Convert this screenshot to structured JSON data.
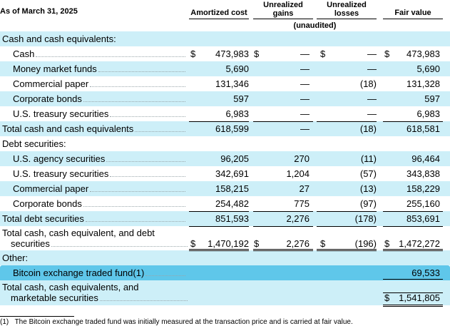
{
  "header": {
    "as_of": "As of March 31, 2025",
    "col_amortized": "Amortized cost",
    "col_gains": "Unrealized\ngains",
    "col_losses": "Unrealized\nlosses",
    "col_fair": "Fair value",
    "unaudited": "(unaudited)"
  },
  "rows": [
    {
      "label": "Cash and cash equivalents:",
      "type": "section"
    },
    {
      "label": "Cash",
      "type": "item",
      "amortized": "473,983",
      "gains": "—",
      "losses": "—",
      "fair": "473,983",
      "dollar": true
    },
    {
      "label": "Money market funds",
      "type": "item",
      "amortized": "5,690",
      "gains": "—",
      "losses": "—",
      "fair": "5,690"
    },
    {
      "label": "Commercial paper",
      "type": "item",
      "amortized": "131,346",
      "gains": "—",
      "losses": "(18)",
      "fair": "131,328"
    },
    {
      "label": "Corporate bonds",
      "type": "item",
      "amortized": "597",
      "gains": "—",
      "losses": "—",
      "fair": "597"
    },
    {
      "label": "U.S. treasury securities",
      "type": "item",
      "amortized": "6,983",
      "gains": "—",
      "losses": "—",
      "fair": "6,983"
    },
    {
      "label": "Total cash and cash equivalents",
      "type": "total",
      "amortized": "618,599",
      "gains": "—",
      "losses": "(18)",
      "fair": "618,581"
    },
    {
      "label": "Debt securities:",
      "type": "section"
    },
    {
      "label": "U.S. agency securities",
      "type": "item",
      "amortized": "96,205",
      "gains": "270",
      "losses": "(11)",
      "fair": "96,464"
    },
    {
      "label": "U.S. treasury securities",
      "type": "item",
      "amortized": "342,691",
      "gains": "1,204",
      "losses": "(57)",
      "fair": "343,838"
    },
    {
      "label": "Commercial paper",
      "type": "item",
      "amortized": "158,215",
      "gains": "27",
      "losses": "(13)",
      "fair": "158,229"
    },
    {
      "label": "Corporate bonds",
      "type": "item",
      "amortized": "254,482",
      "gains": "775",
      "losses": "(97)",
      "fair": "255,160"
    },
    {
      "label": "Total debt securities",
      "type": "total",
      "amortized": "851,593",
      "gains": "2,276",
      "losses": "(178)",
      "fair": "853,691"
    },
    {
      "label1": "Total cash, cash equivalent, and debt",
      "label2": "securities",
      "type": "total2",
      "amortized": "1,470,192",
      "gains": "2,276",
      "losses": "(196)",
      "fair": "1,472,272",
      "dollar": true
    },
    {
      "label": "Other:",
      "type": "section"
    },
    {
      "label": "Bitcoin exchange traded fund(1)",
      "type": "bitcoin",
      "fair": "69,533"
    },
    {
      "label1": "Total cash, cash equivalents, and",
      "label2": "marketable securities",
      "type": "grand",
      "fair": "1,541,805",
      "dollar": true
    }
  ],
  "currency_symbol": "$",
  "footnote": {
    "marker": "(1)",
    "text": "The Bitcoin exchange traded fund was initially measured at the transaction price and is carried at fair value."
  },
  "colors": {
    "band": "#cdeff8",
    "highlight": "#5fc7ea"
  }
}
